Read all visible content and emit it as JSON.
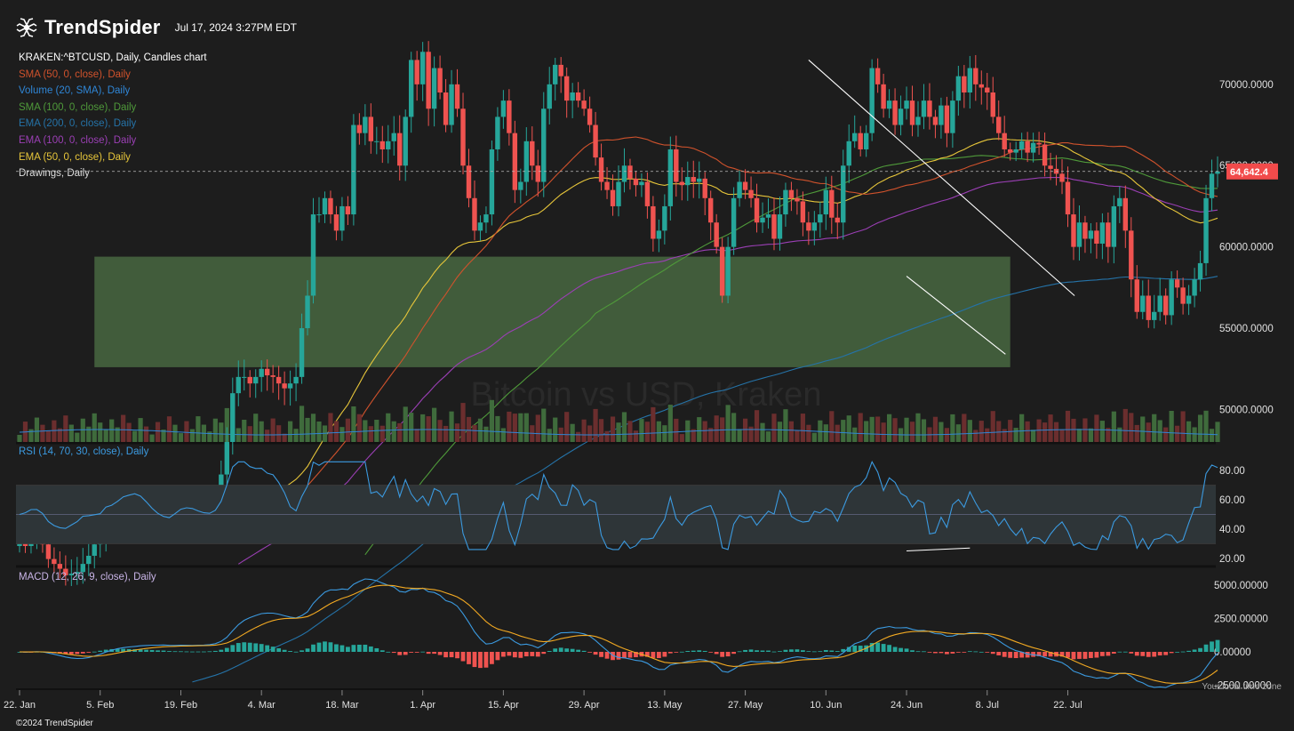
{
  "header": {
    "brand": "TrendSpider",
    "timestamp": "Jul 17, 2024 3:27PM EDT"
  },
  "legend": {
    "symbol": "KRAKEN:^BTCUSD, Daily, Candles chart",
    "indicators": [
      {
        "label": "SMA (50, 0, close), Daily",
        "color": "#d0522c"
      },
      {
        "label": "Volume (20, SMA), Daily",
        "color": "#2f86d6"
      },
      {
        "label": "SMA (100, 0, close), Daily",
        "color": "#4f9a3a"
      },
      {
        "label": "EMA (200, 0, close), Daily",
        "color": "#2573a8"
      },
      {
        "label": "EMA (100, 0, close), Daily",
        "color": "#9b3fb5"
      },
      {
        "label": "EMA (50, 0, close), Daily",
        "color": "#e6c53a"
      },
      {
        "label": "Drawings, Daily",
        "color": "#dddddd"
      }
    ]
  },
  "watermark": "Bitcoin vs USD, Kraken",
  "footer": {
    "copyright": "©2024 TrendSpider",
    "timezone": "Your local time zone"
  },
  "chart_data": {
    "type": "candlestick",
    "price_axis": {
      "ticks": [
        50000,
        55000,
        60000,
        65000,
        70000
      ],
      "labels": [
        "50000.0000",
        "55000.0000",
        "60000.0000",
        "65000.0000",
        "70000.0000"
      ],
      "range": [
        48000,
        73000
      ]
    },
    "last_price": {
      "value": 64642.4,
      "label": "64,642.4",
      "color": "#f24b4b"
    },
    "x_axis": {
      "labels": [
        "22. Jan",
        "5. Feb",
        "19. Feb",
        "4. Mar",
        "18. Mar",
        "1. Apr",
        "15. Apr",
        "29. Apr",
        "13. May",
        "27. May",
        "10. Jun",
        "24. Jun",
        "8. Jul",
        "22. Jul"
      ],
      "tick_days": [
        0,
        14,
        28,
        42,
        56,
        70,
        84,
        98,
        112,
        126,
        140,
        154,
        168,
        182
      ]
    },
    "support_zone": {
      "low": 52600,
      "high": 59400,
      "from_day": 13,
      "to_day": 172
    },
    "trendlines": [
      {
        "from": [
          137,
          71500
        ],
        "to": [
          177,
          57000
        ],
        "color": "#ffffff"
      },
      {
        "from": [
          154,
          58200
        ],
        "to": [
          165,
          53400
        ],
        "color": "#ffffff"
      }
    ],
    "candles_close": [
      41800,
      41600,
      41900,
      42000,
      41700,
      40800,
      40500,
      40200,
      39800,
      39900,
      40000,
      40500,
      41000,
      41700,
      42100,
      42800,
      42900,
      43000,
      42900,
      42800,
      42900,
      43100,
      43000,
      43100,
      43000,
      43200,
      42800,
      43100,
      43300,
      43200,
      43300,
      43500,
      43600,
      44000,
      44500,
      46000,
      48000,
      51000,
      52000,
      52000,
      51600,
      52000,
      52500,
      52100,
      52000,
      51600,
      51300,
      51600,
      52000,
      55000,
      57000,
      62000,
      62000,
      63000,
      62000,
      61000,
      62500,
      62000,
      67500,
      67000,
      68000,
      66500,
      66500,
      66000,
      66500,
      67000,
      65000,
      68000,
      71500,
      70000,
      72000,
      68500,
      71000,
      69500,
      67500,
      70000,
      68500,
      65000,
      63000,
      61000,
      61500,
      62000,
      66000,
      68000,
      69000,
      67000,
      63500,
      64000,
      66500,
      65000,
      64000,
      68500,
      70000,
      71200,
      70500,
      69000,
      69500,
      69000,
      68500,
      67500,
      65500,
      64000,
      63500,
      62500,
      64000,
      65000,
      64200,
      63800,
      64000,
      62500,
      60500,
      61000,
      62500,
      66000,
      64000,
      63800,
      64300,
      64000,
      64200,
      63000,
      61500,
      60000,
      57000,
      60000,
      63000,
      64000,
      63500,
      63000,
      61500,
      61800,
      62000,
      60500,
      62000,
      63500,
      63000,
      62800,
      61500,
      61000,
      61500,
      62000,
      63500,
      61800,
      61500,
      65000,
      66500,
      67000,
      66000,
      67000,
      71000,
      70000,
      68500,
      69000,
      67500,
      68500,
      69000,
      67500,
      68000,
      69000,
      68000,
      67500,
      68700,
      67000,
      69000,
      70500,
      69500,
      71000,
      70000,
      69800,
      69500,
      68000,
      67000,
      66000,
      65800,
      66000,
      66500,
      65800,
      66400,
      66300,
      65000,
      64800,
      64500,
      64000,
      62000,
      60000,
      61500,
      60500,
      61000,
      60200,
      61500,
      60000,
      62500,
      63000,
      61000,
      58000,
      56000,
      57000,
      55500,
      56000,
      57000,
      55800,
      58000,
      57500,
      56500,
      57000,
      58000,
      59000,
      63000,
      64500,
      64642
    ],
    "rsi": {
      "label": "RSI (14, 70, 30, close), Daily",
      "levels": [
        30,
        50,
        70
      ],
      "ticks": [
        "80.00",
        "60.00",
        "40.00",
        "20.00"
      ],
      "tick_values": [
        80,
        60,
        40,
        20
      ],
      "color": "#3b9ae0"
    },
    "macd": {
      "label": "MACD (12, 26, 9, close), Daily",
      "ticks": [
        "5000.00000",
        "2500.00000",
        "0.00000",
        "-2500.00000"
      ],
      "tick_values": [
        5000,
        2500,
        0,
        -2500
      ],
      "macd_color": "#3b9ae0",
      "signal_color": "#f2a922"
    },
    "colors": {
      "up": "#26a69a",
      "down": "#ef5350",
      "background": "#1d1d1d"
    }
  }
}
